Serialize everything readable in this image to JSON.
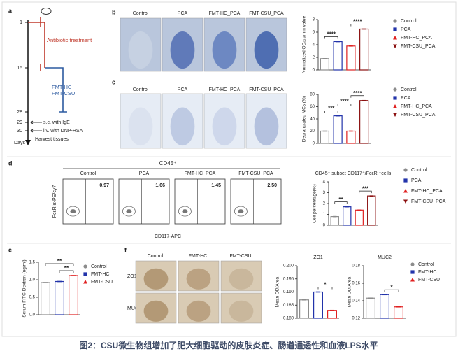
{
  "caption": "图2：CSU微生物组增加了肥大细胞驱动的皮肤炎症、肠道通透性和血液LPS水平",
  "panel_a": {
    "label": "a",
    "days": [
      "1",
      "15",
      "28",
      "29",
      "30"
    ],
    "axis_label": "Days",
    "antibiotic": "Antibiotic treatment",
    "fmt": [
      "FMT-HC",
      "FMT-CSU"
    ],
    "events": [
      "s.c. with IgE",
      "i.v. with DNP-HSA",
      "Harvest tissues"
    ]
  },
  "panel_b": {
    "label": "b",
    "image_labels": [
      "Control",
      "PCA",
      "FMT-HC_PCA",
      "FMT-CSU_PCA"
    ],
    "chart": {
      "type": "bar",
      "ylabel": "Normalized OD₆₂₀/mm value",
      "categories": [
        "Control",
        "PCA",
        "FMT-HC_PCA",
        "FMT-CSU_PCA"
      ],
      "colors": [
        "#8c8c8c",
        "#2233aa",
        "#e02020",
        "#8b1010"
      ],
      "values": [
        1.8,
        4.5,
        3.8,
        6.5
      ],
      "ylim": [
        0,
        8
      ],
      "yticks": [
        0,
        2,
        4,
        6,
        8
      ],
      "significance": [
        "****",
        "****"
      ]
    }
  },
  "panel_c": {
    "label": "c",
    "image_labels": [
      "Control",
      "PCA",
      "FMT-HC_PCA",
      "FMT-CSU_PCA"
    ],
    "chart": {
      "type": "bar",
      "ylabel": "Degranulated MCs (%)",
      "categories": [
        "Control",
        "PCA",
        "FMT-HC_PCA",
        "FMT-CSU_PCA"
      ],
      "colors": [
        "#8c8c8c",
        "#2233aa",
        "#e02020",
        "#8b1010"
      ],
      "values": [
        20,
        45,
        20,
        70
      ],
      "ylim": [
        0,
        80
      ],
      "yticks": [
        0,
        20,
        40,
        60,
        80
      ],
      "significance": [
        "***",
        "****",
        "****"
      ]
    }
  },
  "panel_d": {
    "label": "d",
    "header": "CD45⁺",
    "plot_labels": [
      "Control",
      "PCA",
      "FMT-HC_PCA",
      "FMT-CSU_PCA"
    ],
    "gate_values": [
      "0.97",
      "1.66",
      "1.45",
      "2.50"
    ],
    "y_axis": "FcεRIα-PE/cy7",
    "x_axis": "CD117-APC",
    "chart": {
      "type": "bar",
      "title": "CD45⁺ subset CD117⁺/FcεRI⁺cells",
      "ylabel": "Cell percentage(%)",
      "categories": [
        "Control",
        "PCA",
        "FMT-HC_PCA",
        "FMT-CSU_PCA"
      ],
      "colors": [
        "#8c8c8c",
        "#2233aa",
        "#e02020",
        "#8b1010"
      ],
      "values": [
        0.8,
        1.7,
        1.4,
        2.7
      ],
      "ylim": [
        0,
        4
      ],
      "yticks": [
        0,
        1,
        2,
        3,
        4
      ],
      "significance": [
        "**",
        "***"
      ]
    }
  },
  "panel_e": {
    "label": "e",
    "chart": {
      "type": "bar",
      "ylabel": "Serum FITC-Dextran (ug/ml)",
      "categories": [
        "Control",
        "FMT-HC",
        "FMT-CSU"
      ],
      "colors": [
        "#8c8c8c",
        "#2233aa",
        "#e02020"
      ],
      "values": [
        0.92,
        0.95,
        1.12
      ],
      "ylim": [
        0,
        1.5
      ],
      "yticks": [
        {
          "value": 0,
          "label": "0.0"
        },
        0.5,
        {
          "value": 1,
          "label": "1.0"
        },
        1.5
      ],
      "significance": [
        "**",
        "**"
      ]
    }
  },
  "panel_f": {
    "label": "f",
    "image_labels": [
      "Control",
      "FMT-HC",
      "FMT-CSU"
    ],
    "row_labels": [
      "ZO1",
      "MUC2"
    ],
    "zo1": {
      "type": "bar",
      "title": "ZO1",
      "ylabel": "Mean OD/Area",
      "categories": [
        "Control",
        "FMT-HC",
        "FMT-CSU"
      ],
      "colors": [
        "#8c8c8c",
        "#2233aa",
        "#e02020"
      ],
      "values": [
        0.187,
        0.19,
        0.183
      ],
      "ylim": [
        0.18,
        0.2
      ],
      "yticks": [
        {
          "value": 0.18,
          "label": "0.180"
        },
        {
          "value": 0.185,
          "label": "0.185"
        },
        {
          "value": 0.19,
          "label": "0.190"
        },
        {
          "value": 0.195,
          "label": "0.195"
        },
        {
          "value": 0.2,
          "label": "0.200"
        }
      ],
      "significance": [
        "*"
      ]
    },
    "muc2": {
      "type": "bar",
      "title": "MUC2",
      "ylabel": "Mean OD/Area",
      "categories": [
        "Control",
        "FMT-HC",
        "FMT-CSU"
      ],
      "colors": [
        "#8c8c8c",
        "#2233aa",
        "#e02020"
      ],
      "values": [
        0.143,
        0.147,
        0.133
      ],
      "ylim": [
        0.12,
        0.18
      ],
      "yticks": [
        {
          "value": 0.12,
          "label": "0.12"
        },
        {
          "value": 0.14,
          "label": "0.14"
        },
        {
          "value": 0.16,
          "label": "0.16"
        },
        {
          "value": 0.18,
          "label": "0.18"
        }
      ],
      "significance": [
        "*"
      ]
    }
  }
}
